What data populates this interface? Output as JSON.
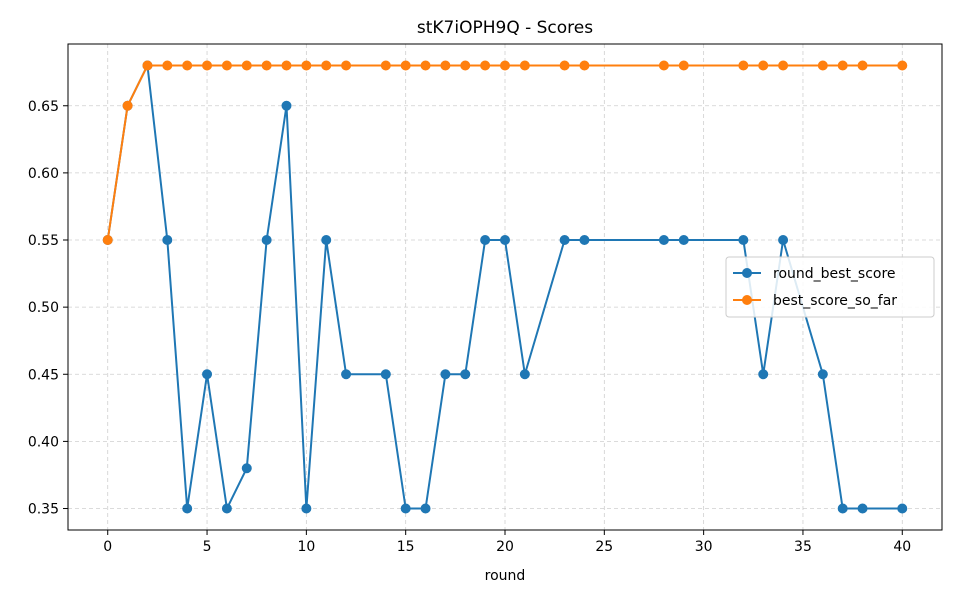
{
  "chart_data": {
    "type": "line",
    "title": "stK7iOPH9Q - Scores",
    "xlabel": "round",
    "ylabel": "",
    "xlim": [
      -2,
      42
    ],
    "ylim": [
      0.334,
      0.696
    ],
    "xticks": [
      0,
      5,
      10,
      15,
      20,
      25,
      30,
      35,
      40
    ],
    "yticks": [
      0.35,
      0.4,
      0.45,
      0.5,
      0.55,
      0.6,
      0.65
    ],
    "ytick_labels": [
      "0.35",
      "0.40",
      "0.45",
      "0.50",
      "0.55",
      "0.60",
      "0.65"
    ],
    "grid": true,
    "legend_position": "center-right",
    "x": [
      0,
      1,
      2,
      3,
      4,
      5,
      6,
      7,
      8,
      9,
      10,
      11,
      12,
      14,
      15,
      16,
      17,
      18,
      19,
      20,
      21,
      23,
      24,
      28,
      29,
      32,
      33,
      34,
      36,
      37,
      38,
      40
    ],
    "series": [
      {
        "name": "round_best_score",
        "color": "#1f77b4",
        "values": [
          0.55,
          0.65,
          0.68,
          0.55,
          0.35,
          0.45,
          0.35,
          0.38,
          0.55,
          0.65,
          0.35,
          0.55,
          0.45,
          0.45,
          0.35,
          0.35,
          0.45,
          0.45,
          0.55,
          0.55,
          0.45,
          0.55,
          0.55,
          0.55,
          0.55,
          0.55,
          0.45,
          0.55,
          0.45,
          0.35,
          0.35,
          0.35
        ]
      },
      {
        "name": "best_score_so_far",
        "color": "#ff7f0e",
        "values": [
          0.55,
          0.65,
          0.68,
          0.68,
          0.68,
          0.68,
          0.68,
          0.68,
          0.68,
          0.68,
          0.68,
          0.68,
          0.68,
          0.68,
          0.68,
          0.68,
          0.68,
          0.68,
          0.68,
          0.68,
          0.68,
          0.68,
          0.68,
          0.68,
          0.68,
          0.68,
          0.68,
          0.68,
          0.68,
          0.68,
          0.68,
          0.68
        ]
      }
    ]
  }
}
